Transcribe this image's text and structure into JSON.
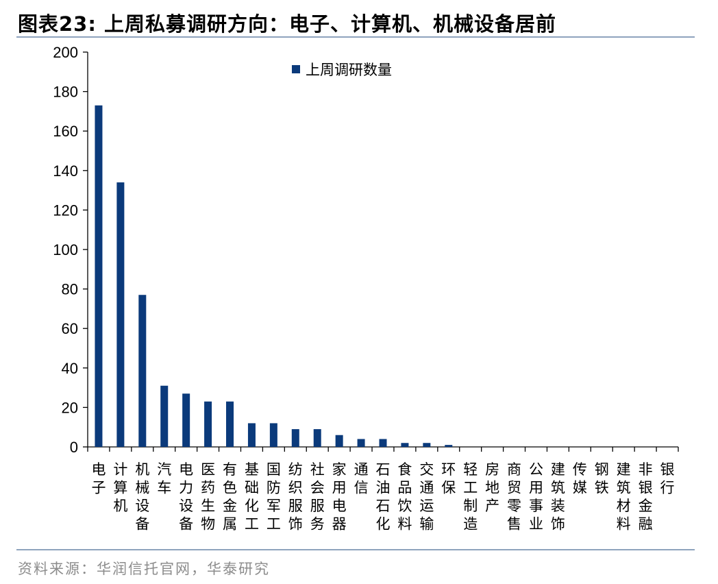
{
  "header": {
    "title": "图表23:  上周私募调研方向：电子、计算机、机械设备居前"
  },
  "footer": {
    "source": "资料来源：华润信托官网，华泰研究"
  },
  "colors": {
    "bar": "#0b3a7b",
    "rule": "#8ea3bd"
  },
  "chart_data": {
    "type": "bar",
    "title": "",
    "xlabel": "",
    "ylabel": "",
    "ylim": [
      0,
      200
    ],
    "yticks": [
      0,
      20,
      40,
      60,
      80,
      100,
      120,
      140,
      160,
      180,
      200
    ],
    "grid": false,
    "legend_position": "top-center",
    "categories": [
      "电子",
      "计算机",
      "机械设备",
      "汽车",
      "电力设备",
      "医药生物",
      "有色金属",
      "基础化工",
      "国防军工",
      "纺织服饰",
      "社会服务",
      "家用电器",
      "通信",
      "石油石化",
      "食品饮料",
      "交通运输",
      "环保",
      "轻工制造",
      "房地产",
      "商贸零售",
      "公用事业",
      "建筑装饰",
      "传媒",
      "钢铁",
      "建筑材料",
      "非银金融",
      "银行"
    ],
    "series": [
      {
        "name": "上周调研数量",
        "values": [
          173,
          134,
          77,
          31,
          27,
          23,
          23,
          12,
          12,
          9,
          9,
          6,
          4,
          4,
          2,
          2,
          1,
          0,
          0,
          0,
          0,
          0,
          0,
          0,
          0,
          0,
          0
        ]
      }
    ]
  }
}
